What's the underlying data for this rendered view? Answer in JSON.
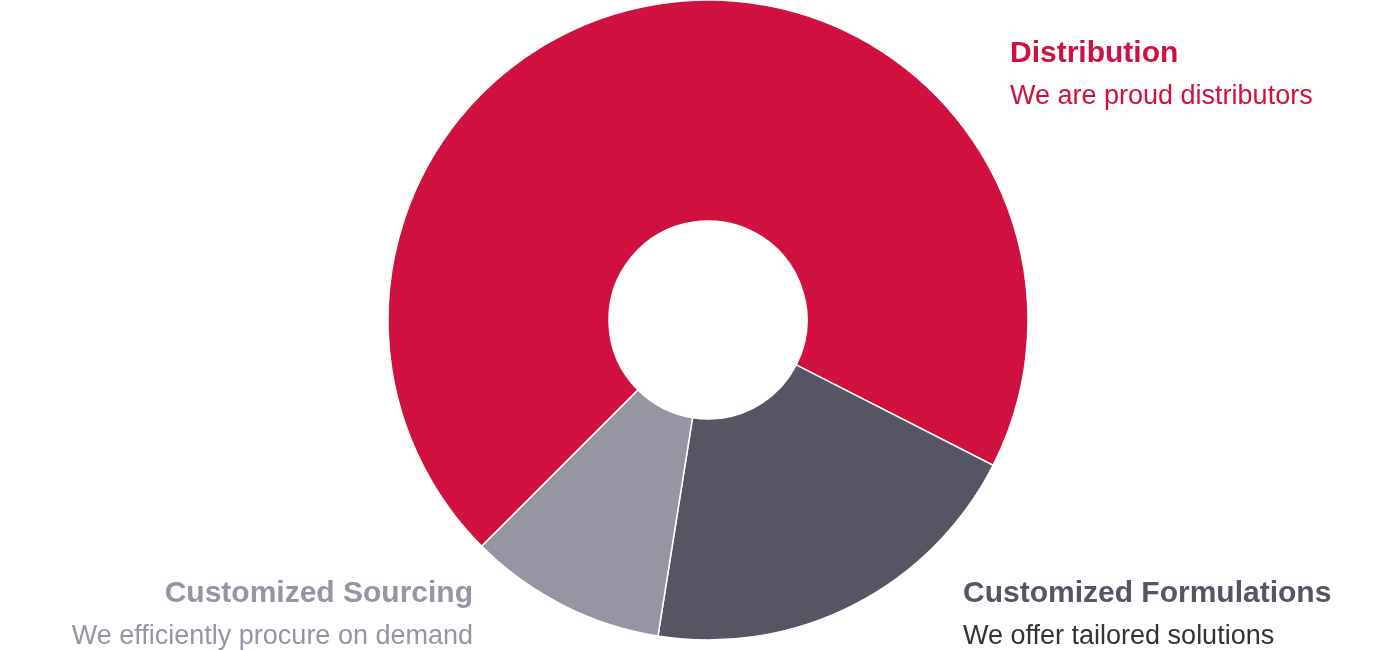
{
  "chart_data": {
    "type": "donut",
    "categories": [
      "Distribution",
      "Customized Formulations",
      "Customized Sourcing"
    ],
    "values": [
      70,
      20,
      10
    ],
    "colors": [
      "#d0113f",
      "#555563",
      "#9595a4"
    ],
    "annotations": [
      "We are proud distributors",
      "We offer tailored solutions",
      "We efficiently procure on demand"
    ]
  }
}
